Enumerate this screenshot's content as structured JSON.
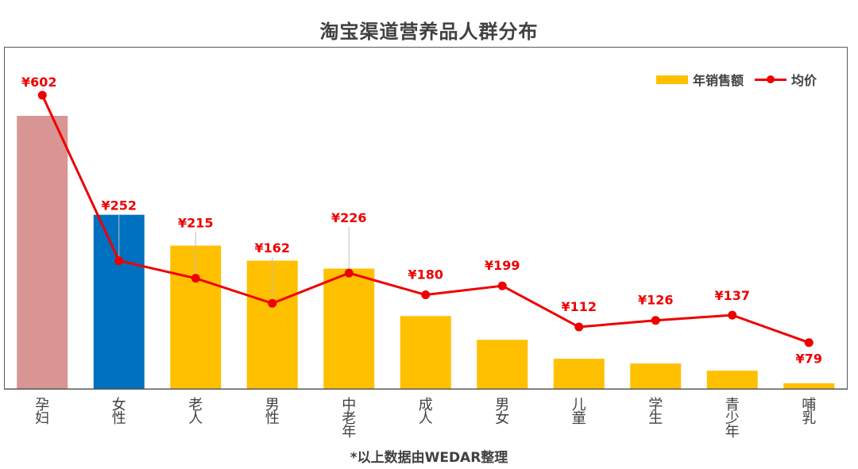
{
  "chart_data": {
    "type": "bar",
    "title": "淘宝渠道营养品人群分布",
    "note": "*以上数据由WEDAR整理",
    "categories": [
      "孕妇",
      "女性",
      "老人",
      "男性",
      "中老年",
      "成人",
      "男女",
      "儿童",
      "学生",
      "青少年",
      "哺乳"
    ],
    "bar_colors": [
      "#D99594",
      "#0070C0",
      "#FFC000",
      "#FFC000",
      "#FFC000",
      "#FFC000",
      "#FFC000",
      "#FFC000",
      "#FFC000",
      "#FFC000",
      "#FFC000"
    ],
    "line_color": "#EE0000",
    "series": [
      {
        "name": "年销售额",
        "type": "bar",
        "values": [
          345,
          220,
          181,
          162,
          152,
          92,
          62,
          38,
          32,
          23,
          7
        ]
      },
      {
        "name": "均价",
        "type": "line",
        "values": [
          602,
          252,
          215,
          162,
          226,
          180,
          199,
          112,
          126,
          137,
          79
        ],
        "labels": [
          "¥602",
          "¥252",
          "¥215",
          "¥162",
          "¥226",
          "¥180",
          "¥199",
          "¥112",
          "¥126",
          "¥137",
          "¥79"
        ]
      }
    ],
    "legend_position": "top-right",
    "grid": false
  }
}
